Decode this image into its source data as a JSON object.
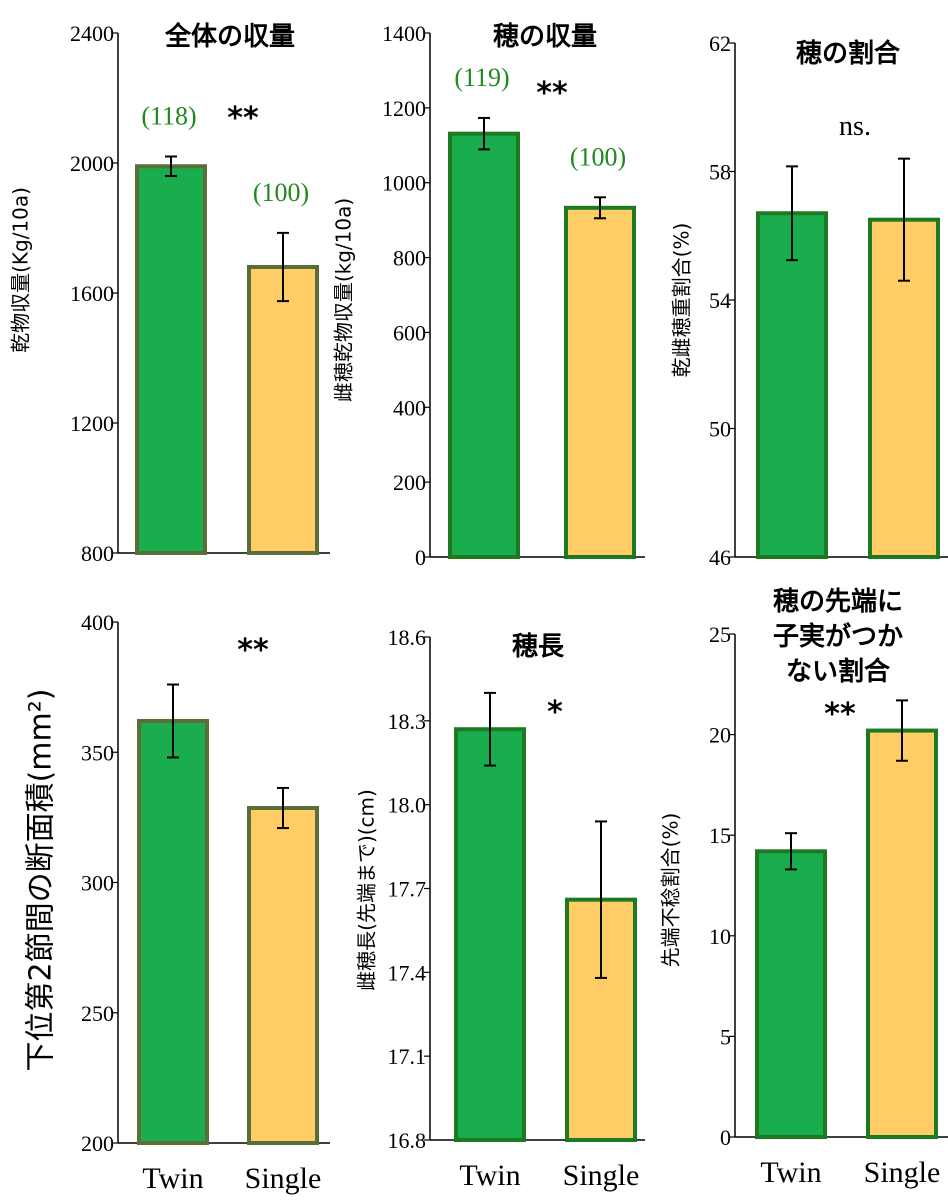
{
  "chart_data": [
    {
      "type": "bar",
      "title": "全体の収量",
      "ylabel": "乾物収量(Kg/10a)",
      "categories": [
        null,
        null
      ],
      "values": [
        1990,
        1680
      ],
      "errors": [
        30,
        105
      ],
      "bar_labels": [
        "(118)",
        "(100)"
      ],
      "significance": "**",
      "colors": [
        "#1aad4e",
        "#ffcc66"
      ],
      "edgecolor": "#5a6e3a",
      "ylim": [
        800,
        2400
      ],
      "yticks": [
        800,
        1200,
        1600,
        2000,
        2400
      ]
    },
    {
      "type": "bar",
      "title": "穂の収量",
      "ylabel": "雌穂乾物収量(kg/10a)",
      "categories": [
        null,
        null
      ],
      "values": [
        1131,
        933
      ],
      "errors": [
        42,
        28
      ],
      "bar_labels": [
        "(119)",
        "(100)"
      ],
      "significance": "**",
      "colors": [
        "#1aad4e",
        "#ffcc66"
      ],
      "edgecolor": "#1d7a22",
      "ylim": [
        0,
        1400
      ],
      "yticks": [
        0,
        200,
        400,
        600,
        800,
        1000,
        1200,
        1400
      ]
    },
    {
      "type": "bar",
      "title": "穂の割合",
      "ylabel": "乾雌穂重割合(%)",
      "categories": [
        null,
        null
      ],
      "values": [
        56.7,
        56.5
      ],
      "errors": [
        1.46,
        1.9
      ],
      "significance": "ns.",
      "colors": [
        "#1aad4e",
        "#ffcc66"
      ],
      "edgecolor": "#1d7a22",
      "ylim": [
        46,
        62
      ],
      "yticks": [
        46,
        50,
        54,
        58,
        62
      ]
    },
    {
      "type": "bar",
      "ylabel": "下位第2節間の断面積(mm²)",
      "categories": [
        "Twin",
        "Single"
      ],
      "values": [
        362,
        328.6
      ],
      "errors": [
        14,
        7.7
      ],
      "significance": "**",
      "colors": [
        "#1aad4e",
        "#ffcc66"
      ],
      "edgecolor": "#5a6e3a",
      "ylim": [
        200,
        400
      ],
      "yticks": [
        200,
        250,
        300,
        350,
        400
      ]
    },
    {
      "type": "bar",
      "title": "穂長",
      "ylabel": "雌穂長(先端まで)(cm)",
      "categories": [
        "Twin",
        "Single"
      ],
      "values": [
        18.27,
        17.66
      ],
      "errors": [
        0.13,
        0.28
      ],
      "significance": "*",
      "colors": [
        "#1aad4e",
        "#ffcc66"
      ],
      "edgecolor": "#1d7a22",
      "ylim": [
        16.8,
        18.6
      ],
      "yticks": [
        16.8,
        17.1,
        17.4,
        17.7,
        {
          "value": 18,
          "label": "18.0"
        },
        18.3,
        18.6
      ]
    },
    {
      "type": "bar",
      "title": [
        "穂の先端に",
        "子実がつか",
        "ない割合"
      ],
      "ylabel": "先端不稔割合(%)",
      "categories": [
        "Twin",
        "Single"
      ],
      "values": [
        14.2,
        20.2
      ],
      "errors": [
        0.9,
        1.5
      ],
      "significance": "**",
      "colors": [
        "#1aad4e",
        "#ffcc66"
      ],
      "edgecolor": "#1d7a22",
      "ylim": [
        0,
        25
      ],
      "yticks": [
        0,
        5,
        10,
        15,
        20,
        25
      ]
    }
  ]
}
